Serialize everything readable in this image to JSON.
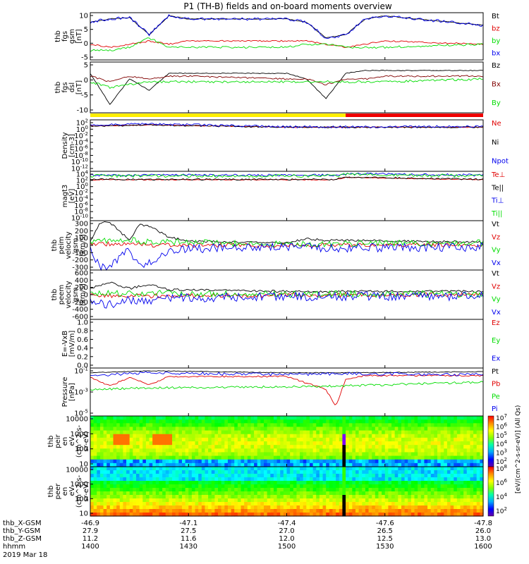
{
  "title": "P1 (TH-B) fields and on-board moments overview",
  "colors": {
    "black": "#000000",
    "red": "#e00000",
    "green": "#00dd00",
    "blue": "#0000ee",
    "darkred": "#800000",
    "yellow": "#ffee00",
    "bar_red": "#ee0000"
  },
  "chart_data": [
    {
      "id": "fgs",
      "type": "line",
      "ylabel": [
        "thb",
        "fgs",
        "gsm",
        "[nT]"
      ],
      "yticks": [
        "10",
        "5",
        "0",
        "-5"
      ],
      "yrange": [
        -5,
        10
      ],
      "series": [
        {
          "name": "Bt",
          "color": "black",
          "x": [
            1400,
            1410,
            1420,
            1430,
            1440,
            1450,
            1500,
            1510,
            1520,
            1530,
            1540,
            1550,
            1600
          ],
          "y": [
            7,
            8,
            8.5,
            3,
            9,
            8,
            8,
            7,
            2,
            3,
            8,
            9,
            6
          ]
        },
        {
          "name": "bz",
          "color": "red",
          "x": [
            1400,
            1410,
            1420,
            1430,
            1440,
            1450,
            1500,
            1510,
            1520,
            1530,
            1540,
            1550,
            1600
          ],
          "y": [
            0,
            -1,
            0,
            1,
            0,
            1,
            1,
            1,
            0,
            -1,
            0,
            1,
            0
          ]
        },
        {
          "name": "by",
          "color": "green",
          "x": [
            1400,
            1410,
            1420,
            1430,
            1440,
            1450,
            1500,
            1510,
            1520,
            1530,
            1540,
            1550,
            1600
          ],
          "y": [
            -2,
            -2,
            -1,
            2,
            -1,
            -1,
            -1,
            0,
            0,
            -1,
            -1,
            -1,
            0
          ]
        },
        {
          "name": "bx",
          "color": "blue",
          "x": [
            1400,
            1410,
            1420,
            1430,
            1440,
            1450,
            1500,
            1510,
            1520,
            1530,
            1540,
            1550,
            1600
          ],
          "y": [
            7,
            8,
            8.5,
            3,
            9,
            8,
            8,
            7,
            2,
            3,
            8,
            9,
            6
          ]
        }
      ]
    },
    {
      "id": "fgs_dsl",
      "type": "line",
      "ylabel": [
        "thb",
        "fgs",
        "dsl",
        "[nT]"
      ],
      "yticks": [
        "5",
        "0",
        "-5",
        "-10"
      ],
      "yrange": [
        -12,
        6
      ],
      "series": [
        {
          "name": "Bz",
          "color": "black",
          "x": [
            1400,
            1410,
            1420,
            1430,
            1440,
            1450,
            1500,
            1510,
            1520,
            1530,
            1540,
            1550,
            1600
          ],
          "y": [
            2,
            -9,
            0,
            -4,
            2,
            2,
            2,
            0,
            -7,
            2,
            3,
            3,
            3
          ]
        },
        {
          "name": "Bx",
          "color": "darkred",
          "x": [
            1400,
            1410,
            1420,
            1430,
            1440,
            1450,
            1500,
            1510,
            1520,
            1530,
            1540,
            1550,
            1600
          ],
          "y": [
            1,
            -1,
            1,
            0,
            1,
            1,
            0,
            0,
            -2,
            0,
            0,
            1,
            1
          ]
        },
        {
          "name": "By",
          "color": "green",
          "x": [
            1400,
            1410,
            1420,
            1430,
            1440,
            1450,
            1500,
            1510,
            1520,
            1530,
            1540,
            1550,
            1600
          ],
          "y": [
            -1,
            -3,
            -2,
            -1,
            -1,
            -1,
            -1,
            -1,
            -1,
            -1,
            -1,
            -1,
            0
          ]
        }
      ]
    },
    {
      "id": "density",
      "type": "line",
      "ylabel": [
        "Density",
        "[cm-3]"
      ],
      "yticks": [
        "10^2",
        "10^0",
        "10^-2",
        "10^-4",
        "10^-6",
        "10^-8",
        "10^-10",
        "10^-12"
      ],
      "yrange": [
        -12,
        2
      ],
      "series": [
        {
          "name": "Ne",
          "color": "red",
          "x": [
            1400,
            1430,
            1500,
            1530,
            1600
          ],
          "y": [
            0.3,
            0.6,
            0,
            0,
            0
          ]
        },
        {
          "name": "Ni",
          "color": "black",
          "x": [
            1400,
            1430,
            1500,
            1530,
            1600
          ],
          "y": [
            0.3,
            0.6,
            0,
            0,
            0
          ]
        },
        {
          "name": "Npot",
          "color": "blue",
          "x": [
            1400,
            1430,
            1500,
            1530,
            1600
          ],
          "y": [
            0.5,
            0.9,
            0.1,
            0.1,
            0.2
          ]
        }
      ]
    },
    {
      "id": "temperature",
      "type": "line",
      "ylabel": [
        "magt3",
        "[eV]"
      ],
      "yticks": [
        "10^4",
        "10^2",
        "10^0",
        "10^-2",
        "10^-4",
        "10^-6",
        "10^-8",
        "10^-10"
      ],
      "yrange": [
        -10,
        4
      ],
      "series": [
        {
          "name": "Te⊥",
          "color": "red",
          "x": [
            1400,
            1500,
            1525,
            1530,
            1600
          ],
          "y": [
            1.6,
            1.6,
            1.6,
            2.3,
            1.6
          ]
        },
        {
          "name": "Te||",
          "color": "black",
          "x": [
            1400,
            1500,
            1525,
            1530,
            1600
          ],
          "y": [
            1.7,
            1.7,
            1.7,
            2.4,
            1.7
          ]
        },
        {
          "name": "Ti⊥",
          "color": "blue",
          "x": [
            1400,
            1500,
            1525,
            1530,
            1600
          ],
          "y": [
            2.9,
            2.9,
            2.9,
            3.3,
            2.9
          ]
        },
        {
          "name": "Ti||",
          "color": "green",
          "x": [
            1400,
            1500,
            1525,
            1530,
            1600
          ],
          "y": [
            2.7,
            2.7,
            2.7,
            3.1,
            2.7
          ]
        }
      ]
    },
    {
      "id": "peim_velocity",
      "type": "line",
      "ylabel": [
        "thb",
        "peim",
        "velocity",
        "gsm",
        "[km/s]"
      ],
      "yticks": [
        "300",
        "200",
        "100",
        "0",
        "-100",
        "-200",
        "-300"
      ],
      "yrange": [
        -300,
        300
      ],
      "series": [
        {
          "name": "Vt",
          "color": "black",
          "x": [
            1400,
            1405,
            1410,
            1420,
            1425,
            1430,
            1440,
            1450,
            1500,
            1510,
            1520,
            1530,
            1600
          ],
          "y": [
            50,
            280,
            280,
            60,
            250,
            230,
            100,
            50,
            30,
            80,
            60,
            60,
            40
          ]
        },
        {
          "name": "Vz",
          "color": "red",
          "x": [
            1400,
            1420,
            1440,
            1500,
            1530,
            1600
          ],
          "y": [
            20,
            10,
            0,
            0,
            0,
            10
          ]
        },
        {
          "name": "Vy",
          "color": "green",
          "x": [
            1400,
            1420,
            1440,
            1500,
            1530,
            1600
          ],
          "y": [
            40,
            60,
            40,
            10,
            20,
            30
          ]
        },
        {
          "name": "Vx",
          "color": "blue",
          "x": [
            1400,
            1405,
            1410,
            1420,
            1425,
            1430,
            1440,
            1450,
            1500,
            1530,
            1600
          ],
          "y": [
            -30,
            -260,
            -260,
            -60,
            -240,
            -220,
            -80,
            -40,
            -20,
            -30,
            -20
          ]
        }
      ]
    },
    {
      "id": "peem_velocity",
      "type": "line",
      "ylabel": [
        "thb",
        "peem",
        "velocity",
        "gsm",
        "[km/s]"
      ],
      "yticks": [
        "600",
        "400",
        "200",
        "0",
        "-200",
        "-400",
        "-600"
      ],
      "yrange": [
        -600,
        600
      ],
      "series": [
        {
          "name": "Vt",
          "color": "black",
          "x": [
            1400,
            1410,
            1420,
            1430,
            1440,
            1500,
            1530,
            1600
          ],
          "y": [
            150,
            300,
            150,
            250,
            120,
            80,
            80,
            80
          ]
        },
        {
          "name": "Vz",
          "color": "red",
          "x": [
            1400,
            1430,
            1500,
            1600
          ],
          "y": [
            -20,
            -30,
            -10,
            0
          ]
        },
        {
          "name": "Vy",
          "color": "green",
          "x": [
            1400,
            1430,
            1500,
            1600
          ],
          "y": [
            20,
            30,
            10,
            20
          ]
        },
        {
          "name": "Vx",
          "color": "blue",
          "x": [
            1400,
            1410,
            1420,
            1430,
            1440,
            1500,
            1530,
            1600
          ],
          "y": [
            -150,
            -250,
            -120,
            -200,
            -80,
            -50,
            -40,
            -40
          ]
        }
      ]
    },
    {
      "id": "efield",
      "type": "line",
      "ylabel": [
        "E=-VxB",
        "[mV/m]"
      ],
      "yticks": [
        "1.0",
        "0.8",
        "0.6",
        "0.4",
        "0.2",
        "0.0"
      ],
      "yrange": [
        0,
        1
      ],
      "series": [
        {
          "name": "Ez",
          "color": "red",
          "x": [],
          "y": []
        },
        {
          "name": "Ey",
          "color": "green",
          "x": [],
          "y": []
        },
        {
          "name": "Ex",
          "color": "blue",
          "x": [],
          "y": []
        }
      ]
    },
    {
      "id": "pressure",
      "type": "line",
      "ylabel": [
        "Pressure",
        "[nPa]"
      ],
      "yticks": [
        "10^-1",
        "10^-3",
        "10^-5"
      ],
      "yrange": [
        -5.8,
        -0.7
      ],
      "series": [
        {
          "name": "Pt",
          "color": "black",
          "x": [
            1400,
            1430,
            1500,
            1530,
            1600
          ],
          "y": [
            -1.2,
            -1.0,
            -1.2,
            -1.2,
            -1.1
          ]
        },
        {
          "name": "Pb",
          "color": "red",
          "x": [
            1400,
            1410,
            1420,
            1430,
            1440,
            1500,
            1520,
            1525,
            1530,
            1540,
            1600
          ],
          "y": [
            -1.7,
            -2.6,
            -1.7,
            -2.5,
            -1.6,
            -1.6,
            -3.0,
            -4.8,
            -1.9,
            -1.5,
            -1.5
          ]
        },
        {
          "name": "Pe",
          "color": "green",
          "x": [
            1400,
            1430,
            1500,
            1530,
            1600
          ],
          "y": [
            -3.0,
            -2.8,
            -2.7,
            -2.6,
            -2.2
          ]
        },
        {
          "name": "Pi",
          "color": "blue",
          "x": [
            1400,
            1430,
            1500,
            1530,
            1600
          ],
          "y": [
            -1.5,
            -1.2,
            -1.4,
            -1.3,
            -1.4
          ]
        }
      ]
    },
    {
      "id": "peir_spec",
      "type": "heatmap",
      "ylabel": [
        "thb",
        "peir",
        "en",
        "eV",
        "(cm^2-s-",
        "sr-eV)"
      ],
      "yticks": [
        "10000",
        "1000",
        "100",
        "10"
      ],
      "colorbar_ticks": [
        "10^7",
        "10^6",
        "10^5",
        "10^4",
        "10^3",
        "10^2"
      ]
    },
    {
      "id": "peer_spec",
      "type": "heatmap",
      "ylabel": [
        "thb",
        "peer",
        "en",
        "eV",
        "(cm^2-s-",
        "sr-eV)"
      ],
      "yticks": [
        "10000",
        "1000",
        "100",
        "10"
      ],
      "colorbar_ticks": [
        "10^8",
        "10^6",
        "10^4",
        "10^2"
      ],
      "colorbar_label": "[eV/(cm^2-s-sr-eV)] (All Qs)"
    }
  ],
  "xaxis": {
    "rows": [
      {
        "label": "thb_X-GSM",
        "values": [
          "-46.9",
          "-47.1",
          "-47.4",
          "-47.6",
          "-47.8"
        ]
      },
      {
        "label": "thb_Y-GSM",
        "values": [
          "27.9",
          "27.5",
          "27.0",
          "26.5",
          "26.0"
        ]
      },
      {
        "label": "thb_Z-GSM",
        "values": [
          "11.2",
          "11.6",
          "12.0",
          "12.5",
          "13.0"
        ]
      },
      {
        "label": "hhmm",
        "values": [
          "1400",
          "1430",
          "1500",
          "1530",
          "1600"
        ]
      }
    ],
    "date": "2019 Mar 18"
  }
}
